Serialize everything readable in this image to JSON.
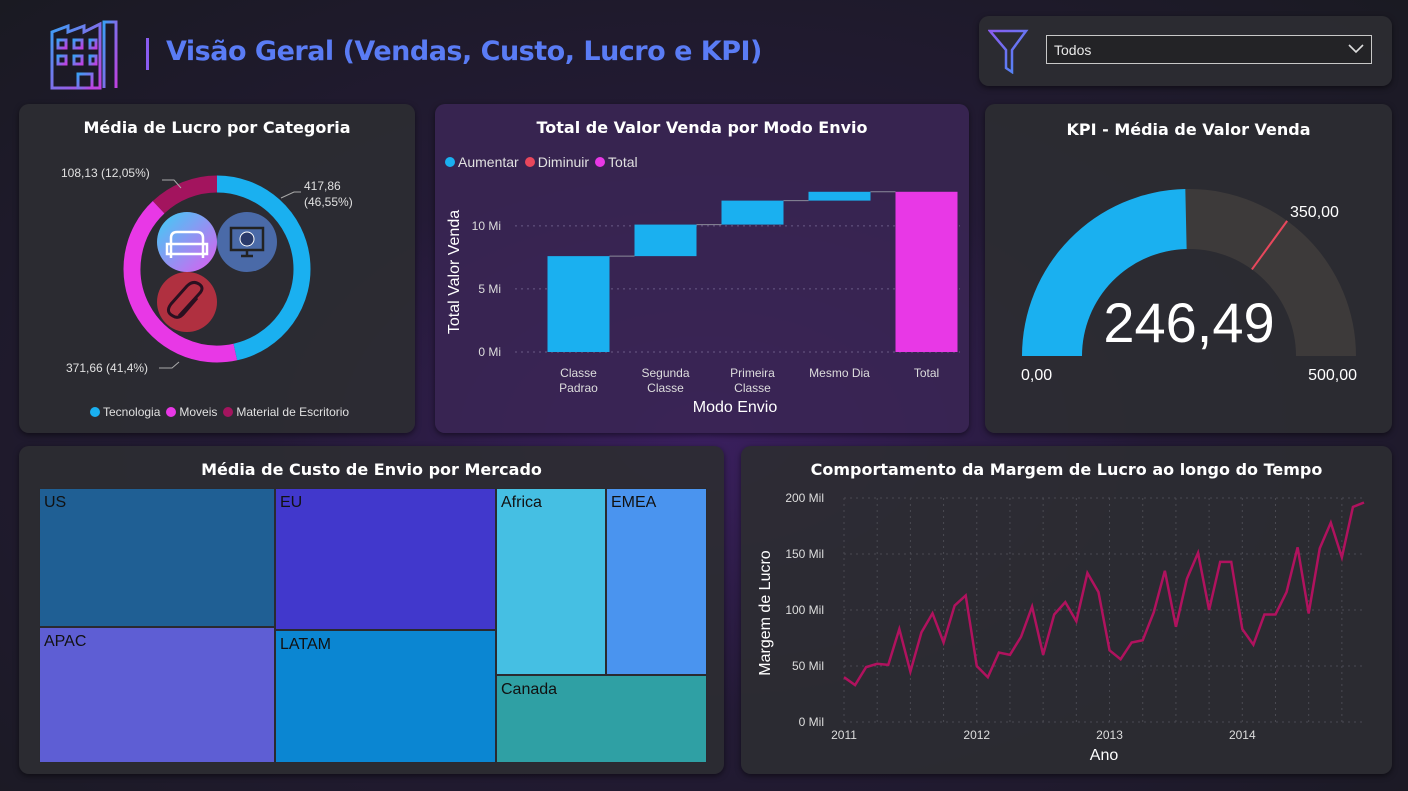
{
  "header": {
    "title": "Visão Geral (Vendas, Custo, Lucro e KPI)",
    "filter_value": "Todos",
    "colors": {
      "title": "#5a7cf5",
      "icon": "#8a5cf0"
    }
  },
  "donut": {
    "title": "Média de Lucro por Categoria",
    "chart_data": {
      "type": "pie",
      "title": "Média de Lucro por Categoria",
      "slices": [
        {
          "name": "Tecnologia",
          "value": 417.86,
          "label": "417,86 (46,55%)",
          "color": "#1ab0f0"
        },
        {
          "name": "Moveis",
          "value": 371.66,
          "label": "371,66 (41,4%)",
          "color": "#e838e6"
        },
        {
          "name": "Material de Escritorio",
          "value": 108.13,
          "label": "108,13 (12,05%)",
          "color": "#a3145e"
        }
      ],
      "legend_position": "bottom"
    },
    "label_tecnologia_1": "417,86",
    "label_tecnologia_2": "(46,55%)",
    "label_moveis": "371,66 (41,4%)",
    "label_material": "108,13 (12,05%)",
    "legend": [
      "Tecnologia",
      "Moveis",
      "Material de Escritorio"
    ]
  },
  "waterfall": {
    "title": "Total de Valor Venda por Modo Envio",
    "legend": [
      "Aumentar",
      "Diminuir",
      "Total"
    ],
    "legend_colors": [
      "#1ab0f0",
      "#e8475c",
      "#e838e6"
    ],
    "chart_data": {
      "type": "bar",
      "subtype": "waterfall",
      "title": "Total de Valor Venda por Modo Envio",
      "categories": [
        "Classe Padrao",
        "Segunda Classe",
        "Primeira Classe",
        "Mesmo Dia",
        "Total"
      ],
      "values": [
        7.6,
        2.5,
        1.9,
        0.7,
        12.7
      ],
      "unit": "Mi",
      "xlabel": "Modo Envio",
      "ylabel": "Total Valor Venda",
      "ylim": [
        0,
        13
      ],
      "yticks": [
        0,
        5,
        10
      ],
      "ytick_labels": [
        "0 Mi",
        "5 Mi",
        "10 Mi"
      ],
      "grid": true
    },
    "cat_lines": [
      [
        "Classe",
        "Padrao"
      ],
      [
        "Segunda",
        "Classe"
      ],
      [
        "Primeira",
        "Classe"
      ],
      [
        "Mesmo Dia"
      ],
      [
        "Total"
      ]
    ]
  },
  "gauge": {
    "title": "KPI - Média de Valor Venda",
    "value_label": "246,49",
    "min_label": "0,00",
    "max_label": "500,00",
    "target_label": "350,00",
    "value": 246.49,
    "min": 0,
    "max": 500,
    "target": 350,
    "colors": {
      "fill": "#1ab0f0",
      "track": "#3d3a3a",
      "target": "#e8475c"
    }
  },
  "treemap": {
    "title": "Média de Custo de Envio por Mercado",
    "cells": [
      {
        "name": "US",
        "color": "#1f5f94"
      },
      {
        "name": "APAC",
        "color": "#5e5ed4"
      },
      {
        "name": "EU",
        "color": "#4138cc"
      },
      {
        "name": "LATAM",
        "color": "#0b86d2"
      },
      {
        "name": "Africa",
        "color": "#45bfe3"
      },
      {
        "name": "EMEA",
        "color": "#4a94ef"
      },
      {
        "name": "Canada",
        "color": "#2fa0a4"
      }
    ]
  },
  "line": {
    "title": "Comportamento da Margem de Lucro ao longo do Tempo",
    "chart_data": {
      "type": "line",
      "title": "Comportamento da Margem de Lucro ao longo do Tempo",
      "xlabel": "Ano",
      "ylabel": "Margem de Lucro",
      "xticks": [
        "2011",
        "2012",
        "2013",
        "2014"
      ],
      "yticks": [
        0,
        50,
        100,
        150,
        200
      ],
      "ytick_labels": [
        "0 Mil",
        "50 Mil",
        "100 Mil",
        "150 Mil",
        "200 Mil"
      ],
      "ylim": [
        0,
        200
      ],
      "unit": "Mil",
      "grid": true,
      "color": "#b0125e",
      "series": [
        {
          "values": [
            40,
            33,
            49,
            52,
            51,
            83,
            45,
            80,
            97,
            71,
            104,
            113,
            50,
            40,
            62,
            60,
            76,
            103,
            60,
            96,
            107,
            90,
            133,
            116,
            64,
            56,
            71,
            73,
            98,
            135,
            85,
            128,
            151,
            100,
            143,
            143,
            83,
            69,
            96,
            96,
            116,
            156,
            97,
            155,
            178,
            147,
            192,
            196
          ]
        }
      ]
    }
  }
}
